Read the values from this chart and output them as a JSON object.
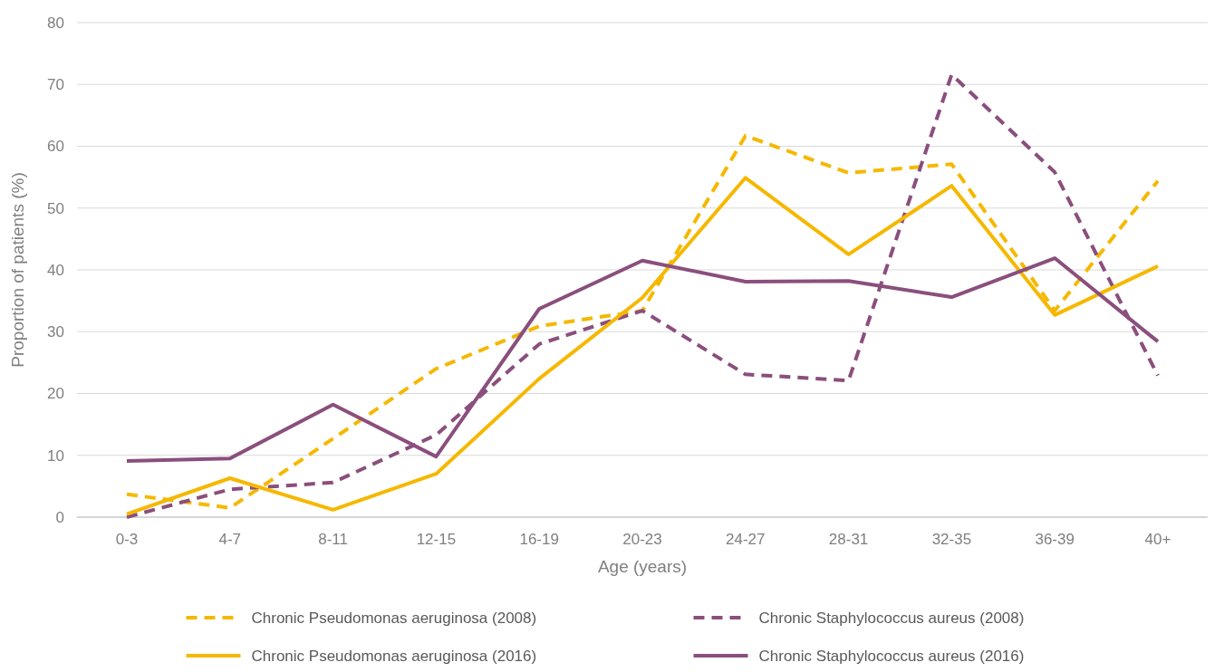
{
  "chart_data": {
    "type": "line",
    "xlabel": "Age (years)",
    "ylabel": "Proportion of patients (%)",
    "categories": [
      "0-3",
      "4-7",
      "8-11",
      "12-15",
      "16-19",
      "20-23",
      "24-27",
      "28-31",
      "32-35",
      "36-39",
      "40+"
    ],
    "ylim": [
      0,
      80
    ],
    "yticks": [
      0,
      10,
      20,
      30,
      40,
      50,
      60,
      70,
      80
    ],
    "grid": "y",
    "legend": "bottom",
    "marker": "none",
    "series": [
      {
        "name": "Chronic Pseudomonas aeruginosa (2008)",
        "color": "#f5b800",
        "line_style": "dashed",
        "values": [
          3.7,
          1.5,
          12.7,
          24,
          30.9,
          33.4,
          61.7,
          55.7,
          57.1,
          33.4,
          54.4
        ]
      },
      {
        "name": "Chronic Staphylococcus aureus (2008)",
        "color": "#8a4f7d",
        "line_style": "dashed",
        "values": [
          0,
          4.5,
          5.6,
          13.3,
          28,
          33.4,
          23.1,
          22.1,
          71.6,
          55.8,
          22.9
        ]
      },
      {
        "name": "Chronic Pseudomonas aeruginosa (2016)",
        "color": "#f5b800",
        "line_style": "solid",
        "values": [
          0.5,
          6.3,
          1.2,
          7,
          22.4,
          35.5,
          54.9,
          42.5,
          53.6,
          32.7,
          40.6
        ]
      },
      {
        "name": "Chronic Staphylococcus aureus (2016)",
        "color": "#8a4f7d",
        "line_style": "solid",
        "values": [
          9.1,
          9.5,
          18.2,
          9.8,
          33.7,
          41.5,
          38.1,
          38.2,
          35.6,
          41.9,
          28.4
        ]
      }
    ]
  }
}
